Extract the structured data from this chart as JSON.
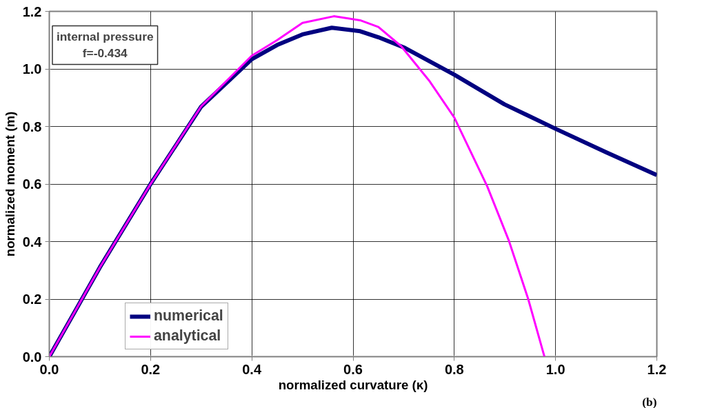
{
  "chart_data": {
    "type": "line",
    "xlabel": "normalized curvature (κ)",
    "ylabel": "normalized moment (m)",
    "annotations": [
      "internal pressure\nf=-0.434",
      "(b)"
    ],
    "xlim": [
      0,
      1.2
    ],
    "ylim": [
      0,
      1.2
    ],
    "xticks": [
      {
        "value": 0,
        "label": "0.0"
      },
      0.2,
      0.4,
      0.6,
      0.8,
      {
        "value": 1,
        "label": "1.0"
      },
      1.2
    ],
    "yticks": [
      {
        "value": 0,
        "label": "0.0"
      },
      0.2,
      0.4,
      0.6,
      0.8,
      {
        "value": 1,
        "label": "1.0"
      },
      1.2
    ],
    "grid": true,
    "legend": "bottom left",
    "line_style": "solid",
    "marker": "none",
    "series": [
      {
        "name": "numerical",
        "color": "#000080",
        "x": [
          0,
          0.05,
          0.1,
          0.2,
          0.3,
          0.4,
          0.45,
          0.5,
          0.558,
          0.614,
          0.65,
          0.7,
          0.8,
          0.899,
          1.0,
          1.1,
          1.2
        ],
        "values": [
          0,
          0.155,
          0.311,
          0.6,
          0.869,
          1.034,
          1.083,
          1.12,
          1.143,
          1.131,
          1.11,
          1.075,
          0.98,
          0.877,
          0.792,
          0.71,
          0.631
        ]
      },
      {
        "name": "analytical",
        "color": "#ff00ff",
        "x": [
          0,
          0.05,
          0.1,
          0.2,
          0.3,
          0.4,
          0.45,
          0.5,
          0.562,
          0.614,
          0.65,
          0.695,
          0.75,
          0.8,
          0.865,
          0.908,
          0.946,
          0.978
        ],
        "values": [
          0,
          0.155,
          0.311,
          0.6,
          0.87,
          1.046,
          1.1,
          1.16,
          1.183,
          1.169,
          1.146,
          1.079,
          0.96,
          0.831,
          0.592,
          0.402,
          0.2,
          0
        ]
      }
    ]
  }
}
